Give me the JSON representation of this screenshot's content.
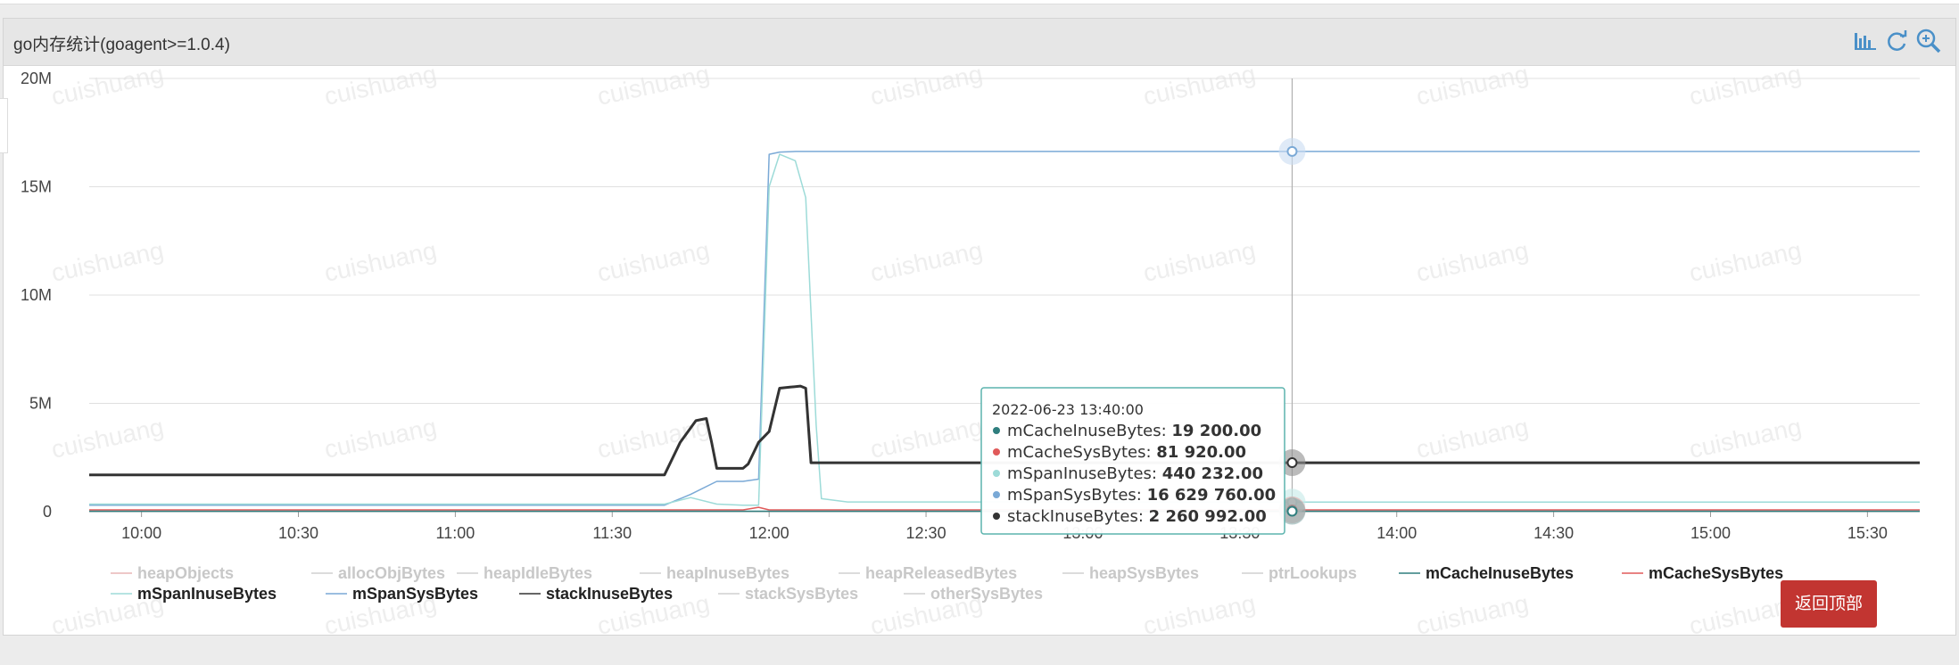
{
  "panel": {
    "title": "go内存统计(goagent>=1.0.4)"
  },
  "toolbar": {
    "icons": [
      "bar-chart-icon",
      "refresh-icon",
      "zoom-icon"
    ]
  },
  "watermark": "cuishuang",
  "back_button": "返回顶部",
  "colors": {
    "accent": "#c23531",
    "toolbar_icon": "#4a90c8"
  },
  "tooltip": {
    "time": "2022-06-23 13:40:00",
    "rows": [
      {
        "name": "mCacheInuseBytes",
        "value": "19 200.00",
        "color": "#2f7e7e"
      },
      {
        "name": "mCacheSysBytes",
        "value": "81 920.00",
        "color": "#e05a5a"
      },
      {
        "name": "mSpanInuseBytes",
        "value": "440 232.00",
        "color": "#9ddbd8"
      },
      {
        "name": "mSpanSysBytes",
        "value": "16 629 760.00",
        "color": "#7aa9d6"
      },
      {
        "name": "stackInuseBytes",
        "value": "2 260 992.00",
        "color": "#333333"
      }
    ]
  },
  "chart_data": {
    "type": "line",
    "xlabel": "",
    "ylabel": "",
    "ylim": [
      0,
      20000000
    ],
    "y_ticks": [
      "20M",
      "15M",
      "10M",
      "5M",
      "0"
    ],
    "x_ticks": [
      "10:00",
      "10:30",
      "11:00",
      "11:30",
      "12:00",
      "12:30",
      "13:00",
      "13:30",
      "14:00",
      "14:30",
      "15:00",
      "15:30"
    ],
    "x_range": [
      "09:50",
      "15:40"
    ],
    "grid": true,
    "legend_position": "bottom",
    "legend": [
      {
        "name": "heapObjects",
        "active": false,
        "color": "#e8b5b5"
      },
      {
        "name": "allocObjBytes",
        "active": false,
        "color": "#cccccc"
      },
      {
        "name": "heapIdleBytes",
        "active": false,
        "color": "#cccccc"
      },
      {
        "name": "heapInuseBytes",
        "active": false,
        "color": "#cccccc"
      },
      {
        "name": "heapReleasedBytes",
        "active": false,
        "color": "#cccccc"
      },
      {
        "name": "heapSysBytes",
        "active": false,
        "color": "#cccccc"
      },
      {
        "name": "ptrLookups",
        "active": false,
        "color": "#cccccc"
      },
      {
        "name": "mCacheInuseBytes",
        "active": true,
        "color": "#2f7e7e"
      },
      {
        "name": "mCacheSysBytes",
        "active": true,
        "color": "#e05a5a"
      },
      {
        "name": "mSpanInuseBytes",
        "active": true,
        "color": "#9ddbd8"
      },
      {
        "name": "mSpanSysBytes",
        "active": true,
        "color": "#7aa9d6"
      },
      {
        "name": "stackInuseBytes",
        "active": true,
        "color": "#333333"
      },
      {
        "name": "stackSysBytes",
        "active": false,
        "color": "#cccccc"
      },
      {
        "name": "otherSysBytes",
        "active": false,
        "color": "#cccccc"
      }
    ],
    "series": [
      {
        "name": "mSpanSysBytes",
        "color": "#7aa9d6",
        "x": [
          "09:50",
          "11:40",
          "11:45",
          "11:50",
          "11:55",
          "11:58",
          "12:00",
          "12:02",
          "12:05",
          "13:40",
          "15:40"
        ],
        "y": [
          300000,
          300000,
          800000,
          1400000,
          1400000,
          1500000,
          16500000,
          16600000,
          16630000,
          16629760,
          16629760
        ]
      },
      {
        "name": "mSpanInuseBytes",
        "color": "#9ddbd8",
        "x": [
          "09:50",
          "11:40",
          "11:45",
          "11:50",
          "11:55",
          "11:58",
          "12:00",
          "12:02",
          "12:05",
          "12:07",
          "12:09",
          "12:10",
          "12:15",
          "13:40",
          "15:40"
        ],
        "y": [
          350000,
          350000,
          650000,
          350000,
          300000,
          300000,
          15000000,
          16500000,
          16200000,
          14500000,
          4000000,
          600000,
          450000,
          440232,
          440232
        ]
      },
      {
        "name": "stackInuseBytes",
        "color": "#333333",
        "x": [
          "09:50",
          "11:40",
          "11:43",
          "11:46",
          "11:48",
          "11:49",
          "11:50",
          "11:55",
          "11:56",
          "11:58",
          "12:00",
          "12:02",
          "12:04",
          "12:06",
          "12:07",
          "12:08",
          "13:40",
          "15:40"
        ],
        "y": [
          1700000,
          1700000,
          3200000,
          4200000,
          4300000,
          3200000,
          2000000,
          2000000,
          2200000,
          3200000,
          3700000,
          5700000,
          5750000,
          5800000,
          5700000,
          2260992,
          2260992,
          2260992
        ]
      },
      {
        "name": "mCacheSysBytes",
        "color": "#e05a5a",
        "x": [
          "09:50",
          "11:55",
          "11:58",
          "12:00",
          "13:40",
          "15:40"
        ],
        "y": [
          81920,
          81920,
          200000,
          81920,
          81920,
          81920
        ]
      },
      {
        "name": "mCacheInuseBytes",
        "color": "#2f7e7e",
        "x": [
          "09:50",
          "13:40",
          "15:40"
        ],
        "y": [
          19200,
          19200,
          19200
        ]
      }
    ]
  }
}
